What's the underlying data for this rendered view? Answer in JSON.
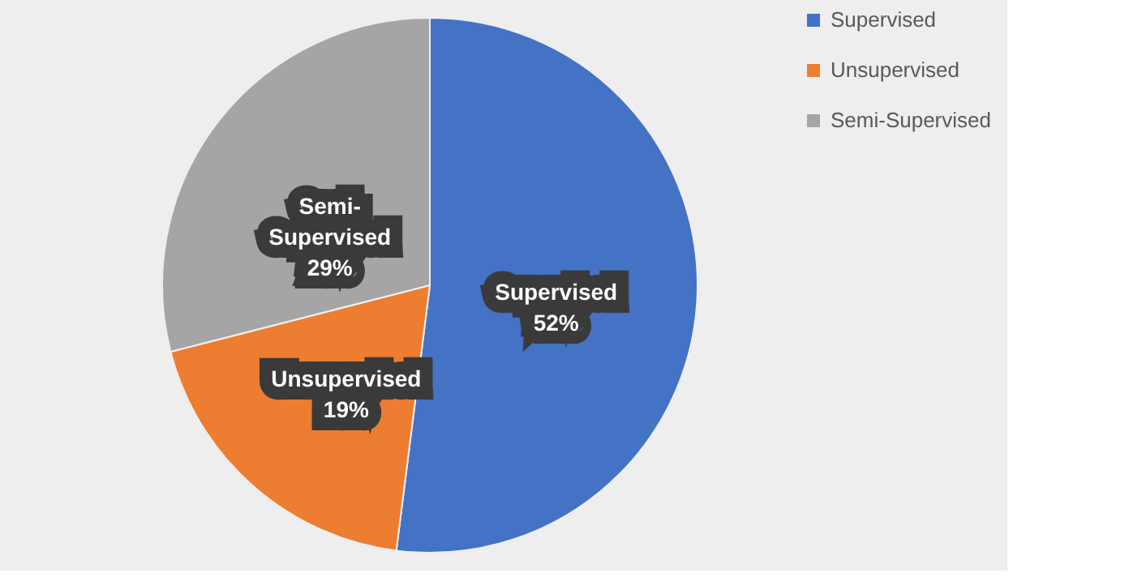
{
  "chart_data": {
    "type": "pie",
    "categories": [
      "Supervised",
      "Unsupervised",
      "Semi-Supervised"
    ],
    "values": [
      52,
      19,
      29
    ],
    "colors": [
      "#4472c4",
      "#ed7d31",
      "#a5a5a5"
    ],
    "value_labels": [
      "Supervised\n52%",
      "Unsupervised\n19%",
      "Semi-\nSupervised\n29%"
    ],
    "legend": "right"
  }
}
